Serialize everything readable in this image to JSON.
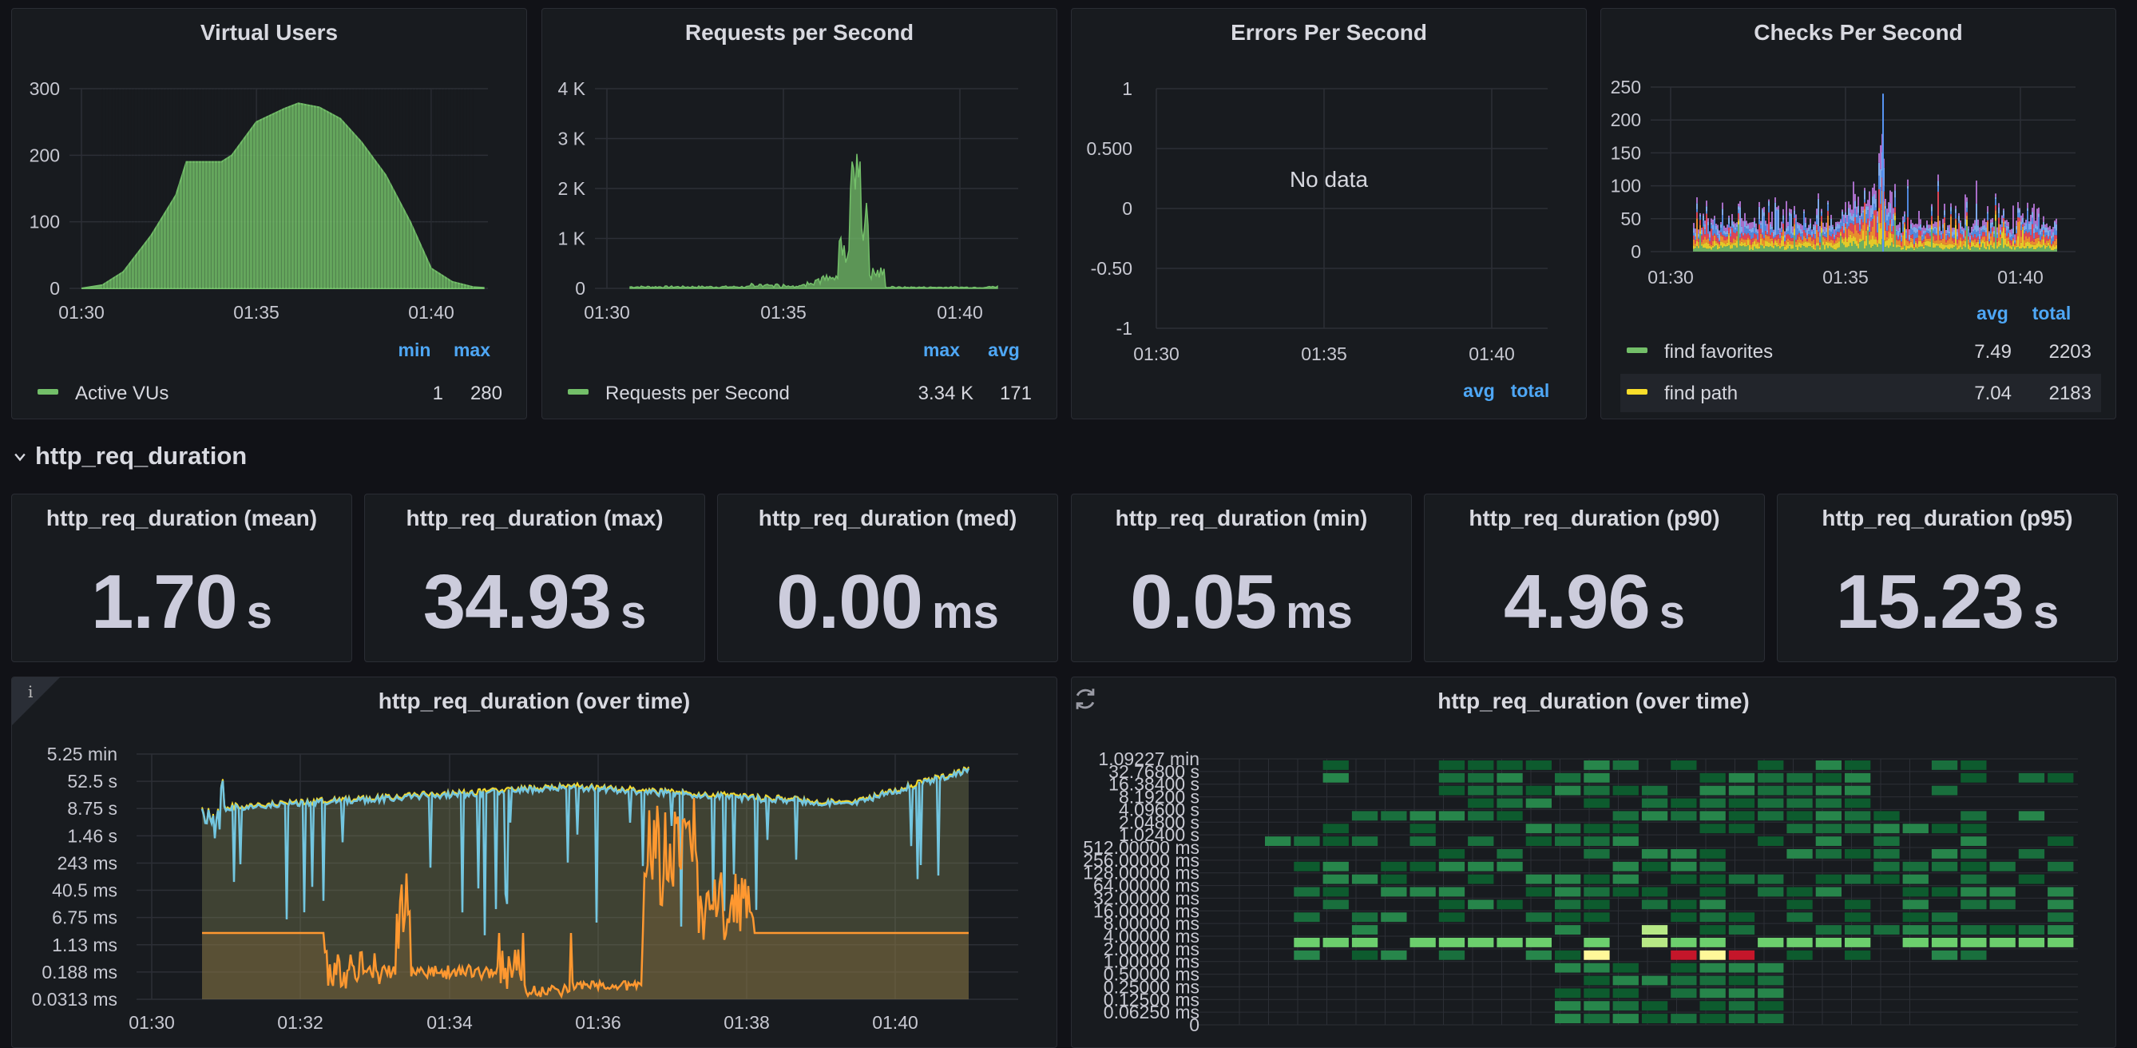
{
  "colors": {
    "green": "#73bf69",
    "yellow": "#fade2a",
    "blue": "#5794f2",
    "orange": "#ff9830",
    "cyan": "#73c6e0",
    "link": "#4ea7f5"
  },
  "vu": {
    "title": "Virtual Users",
    "yticks": [
      "300",
      "200",
      "100",
      "0"
    ],
    "xticks": [
      "01:30",
      "01:35",
      "01:40"
    ],
    "legend_headers": [
      "min",
      "max"
    ],
    "series": {
      "name": "Active VUs",
      "min": "1",
      "max": "280"
    },
    "chart_data": {
      "type": "bar",
      "x_range": [
        "01:30",
        "01:42"
      ],
      "ylim": [
        0,
        300
      ],
      "points": [
        [
          0,
          0
        ],
        [
          0.6,
          5
        ],
        [
          1.2,
          25
        ],
        [
          2,
          80
        ],
        [
          2.7,
          140
        ],
        [
          3,
          190
        ],
        [
          4,
          190
        ],
        [
          4.3,
          200
        ],
        [
          5,
          250
        ],
        [
          5.8,
          270
        ],
        [
          6.2,
          278
        ],
        [
          6.8,
          272
        ],
        [
          7.4,
          255
        ],
        [
          8,
          220
        ],
        [
          8.7,
          170
        ],
        [
          9.4,
          100
        ],
        [
          10,
          30
        ],
        [
          10.6,
          10
        ],
        [
          11.2,
          2
        ],
        [
          11.5,
          1
        ]
      ]
    }
  },
  "rps": {
    "title": "Requests per Second",
    "yticks": [
      "4 K",
      "3 K",
      "2 K",
      "1 K",
      "0"
    ],
    "xticks": [
      "01:30",
      "01:35",
      "01:40"
    ],
    "legend_headers": [
      "max",
      "avg"
    ],
    "series": {
      "name": "Requests per Second",
      "max": "3.34 K",
      "avg": "171"
    },
    "chart_data": {
      "type": "area",
      "ylim": [
        0,
        4000
      ],
      "peak": 3340,
      "peak_time": "01:36"
    }
  },
  "eps": {
    "title": "Errors Per Second",
    "yticks": [
      "1",
      "0.500",
      "0",
      "-0.50",
      "-1"
    ],
    "xticks": [
      "01:30",
      "01:35",
      "01:40"
    ],
    "nodata": "No data",
    "legend_headers": [
      "avg",
      "total"
    ],
    "chart_data": {
      "type": "line",
      "ylim": [
        -1,
        1
      ],
      "values": []
    }
  },
  "cps": {
    "title": "Checks Per Second",
    "yticks": [
      "250",
      "200",
      "150",
      "100",
      "50",
      "0"
    ],
    "xticks": [
      "01:30",
      "01:35",
      "01:40"
    ],
    "legend_headers": [
      "avg",
      "total"
    ],
    "series": [
      {
        "name": "find favorites",
        "avg": "7.49",
        "total": "2203",
        "color": "#73bf69"
      },
      {
        "name": "find path",
        "avg": "7.04",
        "total": "2183",
        "color": "#fade2a"
      }
    ],
    "chart_data": {
      "type": "area",
      "stacked": true,
      "ylim": [
        0,
        250
      ],
      "peak": 240
    }
  },
  "row": {
    "title": "http_req_duration"
  },
  "stats": [
    {
      "title": "http_req_duration (mean)",
      "value": "1.70",
      "unit": "s"
    },
    {
      "title": "http_req_duration (max)",
      "value": "34.93",
      "unit": "s"
    },
    {
      "title": "http_req_duration (med)",
      "value": "0.00",
      "unit": "ms"
    },
    {
      "title": "http_req_duration (min)",
      "value": "0.05",
      "unit": "ms"
    },
    {
      "title": "http_req_duration (p90)",
      "value": "4.96",
      "unit": "s"
    },
    {
      "title": "http_req_duration (p95)",
      "value": "15.23",
      "unit": "s"
    }
  ],
  "overtime": {
    "title": "http_req_duration (over time)",
    "yticks": [
      "5.25 min",
      "52.5 s",
      "8.75 s",
      "1.46 s",
      "243 ms",
      "40.5 ms",
      "6.75 ms",
      "1.13 ms",
      "0.188 ms",
      "0.0313 ms"
    ],
    "xticks": [
      "01:30",
      "01:32",
      "01:34",
      "01:36",
      "01:38",
      "01:40"
    ],
    "chart_data": {
      "type": "line",
      "scale": "log",
      "series_colors": [
        "#73c6e0",
        "#fade2a",
        "#ff9830"
      ]
    }
  },
  "heatmap": {
    "title": "http_req_duration (over time)",
    "yticks": [
      "1.09227 min",
      "32.76800 s",
      "16.38400 s",
      "8.19200 s",
      "4.09600 s",
      "2.04800 s",
      "1.02400 s",
      "512.00000 ms",
      "256.00000 ms",
      "128.00000 ms",
      "64.00000 ms",
      "32.00000 ms",
      "16.00000 ms",
      "8.00000 ms",
      "4.00000 ms",
      "2.00000 ms",
      "1.00000 ms",
      "0.50000 ms",
      "0.25000 ms",
      "0.12500 ms",
      "0.06250 ms",
      "0"
    ],
    "chart_data": {
      "type": "heatmap",
      "rows": 21,
      "cols": 28
    }
  }
}
